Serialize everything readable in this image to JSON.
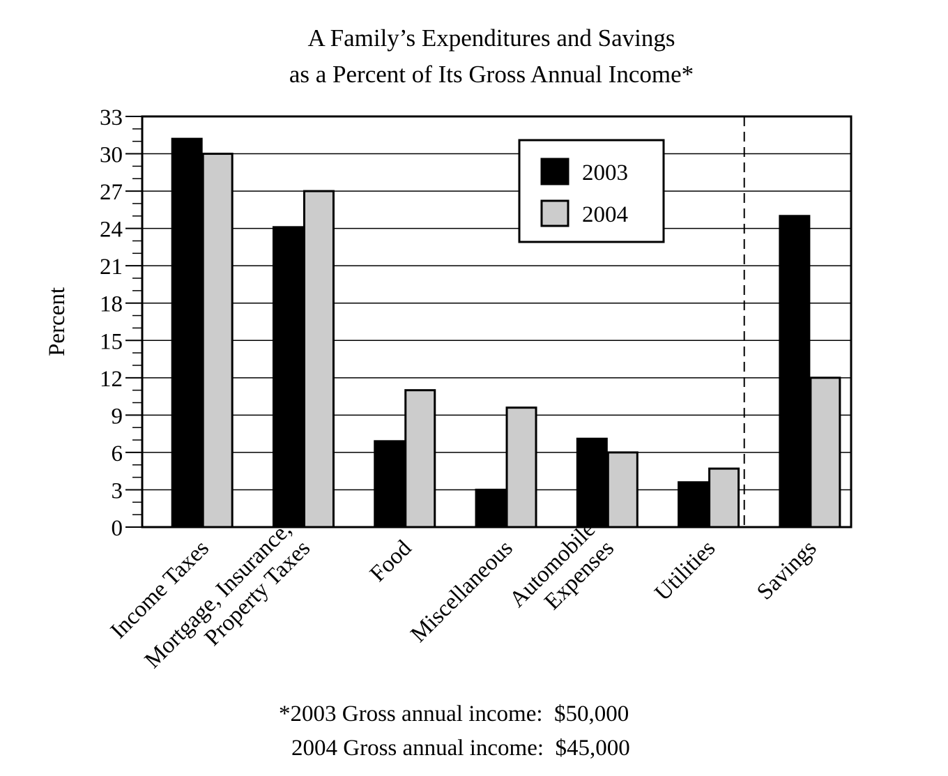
{
  "chart_data": {
    "type": "bar",
    "title": [
      "A Family’s Expenditures and Savings",
      "as a Percent of Its Gross Annual Income*"
    ],
    "ylabel": "Percent",
    "xlabel": "",
    "ylim": [
      0,
      33
    ],
    "y_ticks": [
      0,
      3,
      6,
      9,
      12,
      15,
      18,
      21,
      24,
      27,
      30,
      33
    ],
    "y_minor_step": 1,
    "grid": true,
    "legend_position": "top-center",
    "categories": [
      [
        "Income Taxes"
      ],
      [
        "Mortgage, Insurance,",
        "Property Taxes"
      ],
      [
        "Food"
      ],
      [
        "Miscellaneous"
      ],
      [
        "Automobile",
        "Expenses"
      ],
      [
        "Utilities"
      ],
      [
        "Savings"
      ]
    ],
    "series": [
      {
        "name": "2003",
        "color": "#000000",
        "values": [
          31.2,
          24.1,
          6.9,
          3.0,
          7.1,
          3.6,
          25.0
        ]
      },
      {
        "name": "2004",
        "color": "#cccccc",
        "values": [
          30.0,
          27.0,
          11.0,
          9.6,
          6.0,
          4.7,
          12.0
        ]
      }
    ],
    "separator_before_category": 6,
    "footnotes": [
      "*2003 Gross annual income:  $50,000",
      "2004 Gross annual income:  $45,000"
    ]
  }
}
